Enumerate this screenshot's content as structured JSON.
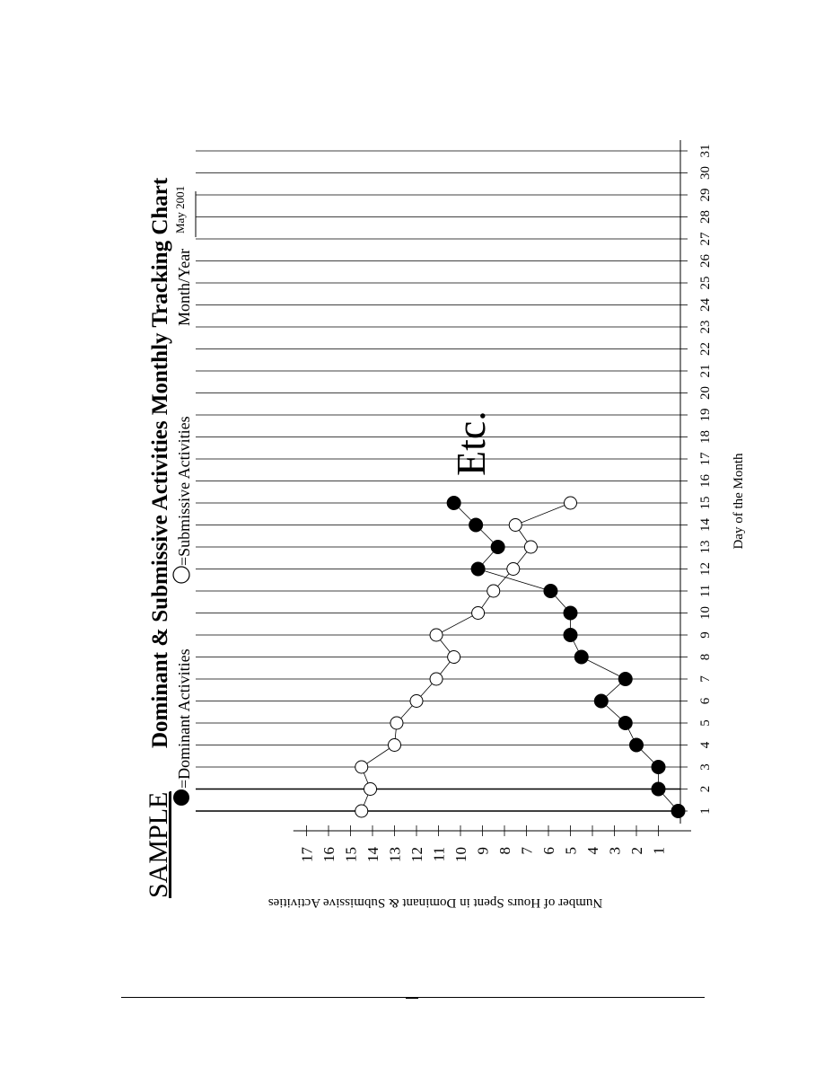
{
  "chart_data": {
    "type": "line",
    "title": "Dominant & Submissive Activities Monthly Tracking Chart",
    "sample_label": "SAMPLE",
    "month_year_label": "Month/Year",
    "month_year_value": "May 2001",
    "xlabel": "Day of the Month",
    "ylabel": "Number of Hours Spent in Dominant & Submissive Activities",
    "annotation": "Etc.",
    "x": [
      1,
      2,
      3,
      4,
      5,
      6,
      7,
      8,
      9,
      10,
      11,
      12,
      13,
      14,
      15,
      16,
      17,
      18,
      19,
      20,
      21,
      22,
      23,
      24,
      25,
      26,
      27,
      28,
      29,
      30,
      31
    ],
    "y_ticks": [
      1,
      2,
      3,
      4,
      5,
      6,
      7,
      8,
      9,
      10,
      11,
      12,
      13,
      14,
      15,
      16,
      17
    ],
    "ylim": [
      0,
      17
    ],
    "xlim": [
      1,
      31
    ],
    "grid": true,
    "legend": "top",
    "series": [
      {
        "name": "=Dominant Activities",
        "marker": "filled-circle",
        "color": "#000000",
        "x": [
          1,
          2,
          3,
          4,
          5,
          6,
          7,
          8,
          9,
          10,
          11,
          12,
          13,
          14,
          15
        ],
        "y": [
          0.1,
          1.0,
          1.0,
          2.0,
          2.5,
          3.6,
          2.5,
          4.5,
          5.0,
          5.0,
          5.9,
          9.2,
          8.3,
          9.3,
          10.3
        ]
      },
      {
        "name": "=Submissive Activities",
        "marker": "open-circle",
        "color": "#000000",
        "x": [
          1,
          2,
          3,
          4,
          5,
          6,
          7,
          8,
          9,
          10,
          11,
          12,
          13,
          14,
          15
        ],
        "y": [
          14.5,
          14.1,
          14.5,
          13.0,
          12.9,
          12.0,
          11.1,
          10.3,
          11.1,
          9.2,
          8.5,
          7.6,
          6.8,
          7.5,
          5.0
        ]
      }
    ]
  }
}
